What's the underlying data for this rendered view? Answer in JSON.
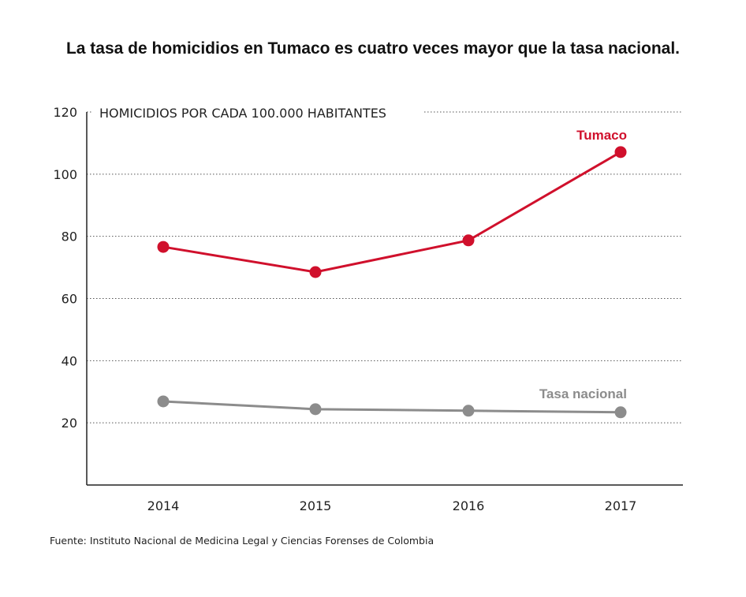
{
  "chart_data": {
    "type": "line",
    "title": "La tasa de homicidios en Tumaco es cuatro veces mayor que la tasa nacional.",
    "ylabel": "HOMICIDIOS POR CADA 100.000 HABITANTES",
    "categories": [
      "2014",
      "2015",
      "2016",
      "2017"
    ],
    "yticks": [
      "20",
      "40",
      "60",
      "80",
      "100",
      "120"
    ],
    "ylim": [
      0,
      120
    ],
    "grid": true,
    "series": [
      {
        "name": "Tumaco",
        "color": "#d0102c",
        "values": [
          76.6,
          68.5,
          78.7,
          107.1
        ]
      },
      {
        "name": "Tasa nacional",
        "color": "#8c8c8c",
        "values": [
          26.9,
          24.4,
          23.9,
          23.4
        ]
      }
    ],
    "source": "Fuente: Instituto Nacional de Medicina Legal y Ciencias Forenses de Colombia"
  }
}
